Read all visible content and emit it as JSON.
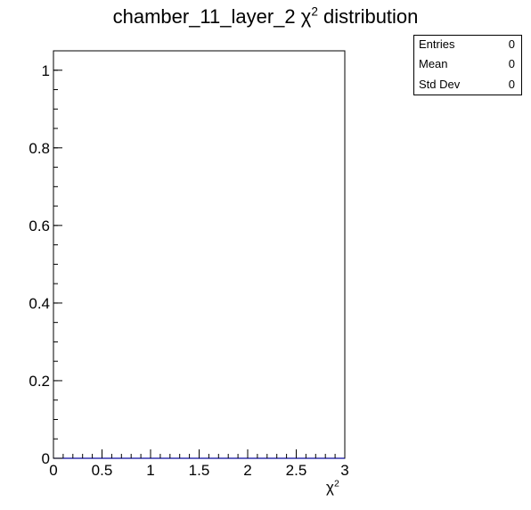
{
  "chart_data": {
    "type": "bar",
    "title": "chamber_11_layer_2 χ² distribution",
    "title_main": "chamber_11_layer_2 χ",
    "title_sup": "2",
    "title_tail": " distribution",
    "xlabel": "χ²",
    "xlabel_main": "χ",
    "xlabel_sup": "2",
    "ylabel": "",
    "xlim": [
      0,
      3
    ],
    "ylim": [
      0,
      1.05
    ],
    "x_ticks": [
      {
        "value": 0,
        "label": "0"
      },
      {
        "value": 0.5,
        "label": "0.5"
      },
      {
        "value": 1,
        "label": "1"
      },
      {
        "value": 1.5,
        "label": "1.5"
      },
      {
        "value": 2,
        "label": "2"
      },
      {
        "value": 2.5,
        "label": "2.5"
      },
      {
        "value": 3,
        "label": "3"
      }
    ],
    "y_ticks": [
      {
        "value": 0,
        "label": "0"
      },
      {
        "value": 0.2,
        "label": "0.2"
      },
      {
        "value": 0.4,
        "label": "0.4"
      },
      {
        "value": 0.6,
        "label": "0.6"
      },
      {
        "value": 0.8,
        "label": "0.8"
      },
      {
        "value": 1,
        "label": "1"
      }
    ],
    "x_minor_step": 0.1,
    "y_minor_step": 0.05,
    "histogram": {
      "bin_edges_range": [
        0,
        3
      ],
      "values": [
        0,
        0,
        0,
        0,
        0,
        0,
        0,
        0,
        0,
        0,
        0,
        0,
        0,
        0,
        0,
        0,
        0,
        0,
        0,
        0,
        0,
        0,
        0,
        0,
        0,
        0,
        0,
        0,
        0,
        0
      ],
      "color": "#000099"
    },
    "grid": false,
    "stats_box": {
      "placement": "top-right",
      "rows": [
        {
          "label": "Entries",
          "value": "0"
        },
        {
          "label": "Mean",
          "value": "0"
        },
        {
          "label": "Std Dev",
          "value": "0"
        }
      ]
    }
  }
}
